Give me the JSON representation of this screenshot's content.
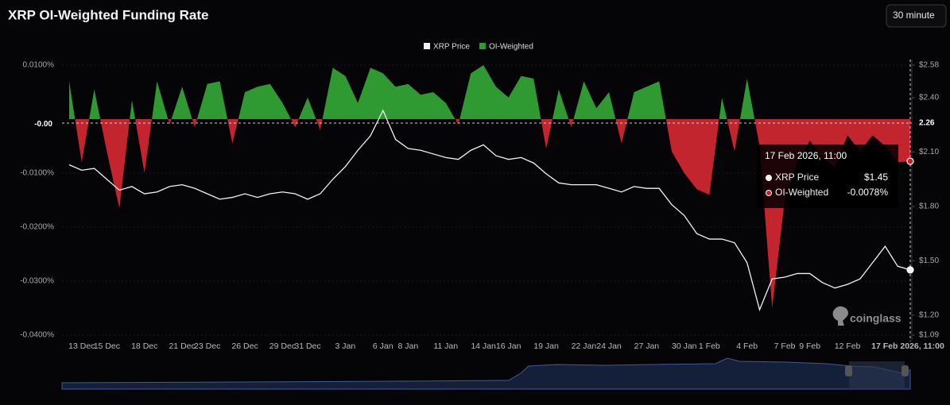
{
  "chart_data": {
    "type": "funding-price",
    "title": "XRP OI-Weighted Funding Rate",
    "interval": "30 minute",
    "watermark": "coinglass",
    "categories": [
      null,
      "13 Dec",
      null,
      "15 Dec",
      null,
      null,
      "18 Dec",
      null,
      null,
      "21 Dec",
      null,
      "23 Dec",
      null,
      null,
      "26 Dec",
      null,
      null,
      "29 Dec",
      null,
      "31 Dec",
      null,
      null,
      "3 Jan",
      null,
      null,
      "6 Jan",
      null,
      "8 Jan",
      null,
      null,
      "11 Jan",
      null,
      null,
      "14 Jan",
      null,
      "16 Jan",
      null,
      null,
      "19 Jan",
      null,
      null,
      "22 Jan",
      null,
      "24 Jan",
      null,
      null,
      "27 Jan",
      null,
      null,
      "30 Jan",
      null,
      "1 Feb",
      null,
      null,
      "4 Feb",
      null,
      null,
      "7 Feb",
      null,
      "9 Feb",
      null,
      null,
      "12 Feb",
      null,
      null,
      null,
      null,
      "17 Feb 2026, 11:00"
    ],
    "series": [
      {
        "name": "XRP Price",
        "color": "#f2f2f2",
        "axis": "y2",
        "values": [
          2.03,
          2.0,
          2.01,
          1.95,
          1.89,
          1.91,
          1.87,
          1.88,
          1.91,
          1.92,
          1.9,
          1.87,
          1.84,
          1.85,
          1.87,
          1.85,
          1.87,
          1.88,
          1.87,
          1.84,
          1.87,
          1.95,
          2.02,
          2.11,
          2.19,
          2.33,
          2.17,
          2.12,
          2.11,
          2.09,
          2.07,
          2.06,
          2.11,
          2.14,
          2.08,
          2.06,
          2.07,
          2.04,
          1.98,
          1.93,
          1.92,
          1.92,
          1.92,
          1.9,
          1.88,
          1.91,
          1.9,
          1.9,
          1.81,
          1.75,
          1.65,
          1.62,
          1.62,
          1.6,
          1.49,
          1.23,
          1.4,
          1.41,
          1.43,
          1.43,
          1.38,
          1.35,
          1.37,
          1.4,
          1.49,
          1.58,
          1.47,
          1.45
        ]
      },
      {
        "name": "OI-Weighted",
        "color": "#2f9a31",
        "negative_color": "#c3252f",
        "values": [
          0.007,
          -0.008,
          0.0055,
          -0.006,
          -0.0165,
          0.0035,
          -0.01,
          0.007,
          -0.001,
          0.006,
          -0.0015,
          0.0065,
          0.007,
          -0.0045,
          0.005,
          0.006,
          0.0065,
          0.003,
          -0.0015,
          0.004,
          -0.002,
          0.0095,
          0.008,
          0.003,
          0.0095,
          0.0085,
          0.006,
          0.0065,
          0.0045,
          0.005,
          0.003,
          -0.001,
          0.0085,
          0.01,
          0.006,
          0.004,
          0.008,
          0.0075,
          -0.0055,
          0.0055,
          -0.0015,
          0.007,
          0.002,
          0.005,
          -0.0045,
          0.005,
          0.006,
          0.007,
          -0.006,
          -0.01,
          -0.013,
          -0.014,
          0.004,
          -0.006,
          0.0075,
          -0.005,
          -0.035,
          -0.015,
          -0.008,
          -0.004,
          -0.007,
          -0.009,
          -0.003,
          -0.006,
          -0.003,
          -0.005,
          -0.008,
          -0.0078
        ]
      }
    ],
    "ylim": [
      -0.04,
      0.01
    ],
    "yticks": [
      {
        "value": 0.01,
        "label": "0.0100%"
      },
      {
        "value": -0.01,
        "label": "-0.0100%"
      },
      {
        "value": -0.02,
        "label": "-0.0200%"
      },
      {
        "value": -0.03,
        "label": "-0.0300%"
      },
      {
        "value": -0.04,
        "label": "-0.0400%"
      }
    ],
    "y2lim": [
      1.09,
      2.58
    ],
    "y2ticks": [
      {
        "value": 2.58,
        "label": "$2.58"
      },
      {
        "value": 2.4,
        "label": "$2.40"
      },
      {
        "value": 2.1,
        "label": "$2.10"
      },
      {
        "value": 1.8,
        "label": "$1.80"
      },
      {
        "value": 1.5,
        "label": "$1.50"
      },
      {
        "value": 1.2,
        "label": "$1.20"
      },
      {
        "value": 1.09,
        "label": "$1.09"
      }
    ],
    "grid": true,
    "legend": "top",
    "crosshair": {
      "y": {
        "value": -0.0009,
        "label": "-0.00"
      },
      "y2": 2.26
    },
    "tooltip": {
      "title": "17 Feb 2026, 11:00",
      "rows": [
        {
          "name": "XRP Price",
          "value": "$1.45"
        },
        {
          "name": "OI-Weighted",
          "value": "-0.0078%"
        }
      ]
    }
  }
}
